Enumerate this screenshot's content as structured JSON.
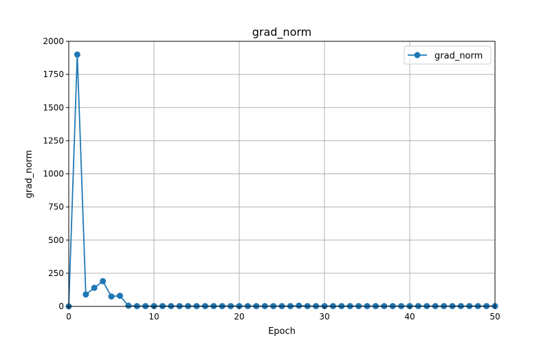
{
  "chart_data": {
    "type": "line",
    "title": "grad_norm",
    "xlabel": "Epoch",
    "ylabel": "grad_norm",
    "xlim": [
      0,
      50
    ],
    "ylim": [
      0,
      2000
    ],
    "x_ticks": [
      0,
      10,
      20,
      30,
      40,
      50
    ],
    "y_ticks": [
      0,
      250,
      500,
      750,
      1000,
      1250,
      1500,
      1750,
      2000
    ],
    "grid": true,
    "legend": {
      "placement": "top-right",
      "entries": [
        "grad_norm"
      ]
    },
    "series": [
      {
        "name": "grad_norm",
        "color": "#1f77b4",
        "marker": "circle",
        "x": [
          0,
          1,
          2,
          3,
          4,
          5,
          6,
          7,
          8,
          9,
          10,
          11,
          12,
          13,
          14,
          15,
          16,
          17,
          18,
          19,
          20,
          21,
          22,
          23,
          24,
          25,
          26,
          27,
          28,
          29,
          30,
          31,
          32,
          33,
          34,
          35,
          36,
          37,
          38,
          39,
          40,
          41,
          42,
          43,
          44,
          45,
          46,
          47,
          48,
          49,
          50
        ],
        "values": [
          0,
          1900,
          90,
          140,
          190,
          75,
          80,
          5,
          2,
          2,
          2,
          2,
          2,
          2,
          2,
          2,
          2,
          2,
          2,
          2,
          2,
          2,
          2,
          2,
          2,
          2,
          2,
          5,
          2,
          2,
          2,
          2,
          2,
          2,
          2,
          2,
          2,
          2,
          2,
          2,
          2,
          2,
          2,
          2,
          2,
          2,
          2,
          2,
          2,
          2,
          2
        ]
      }
    ]
  }
}
